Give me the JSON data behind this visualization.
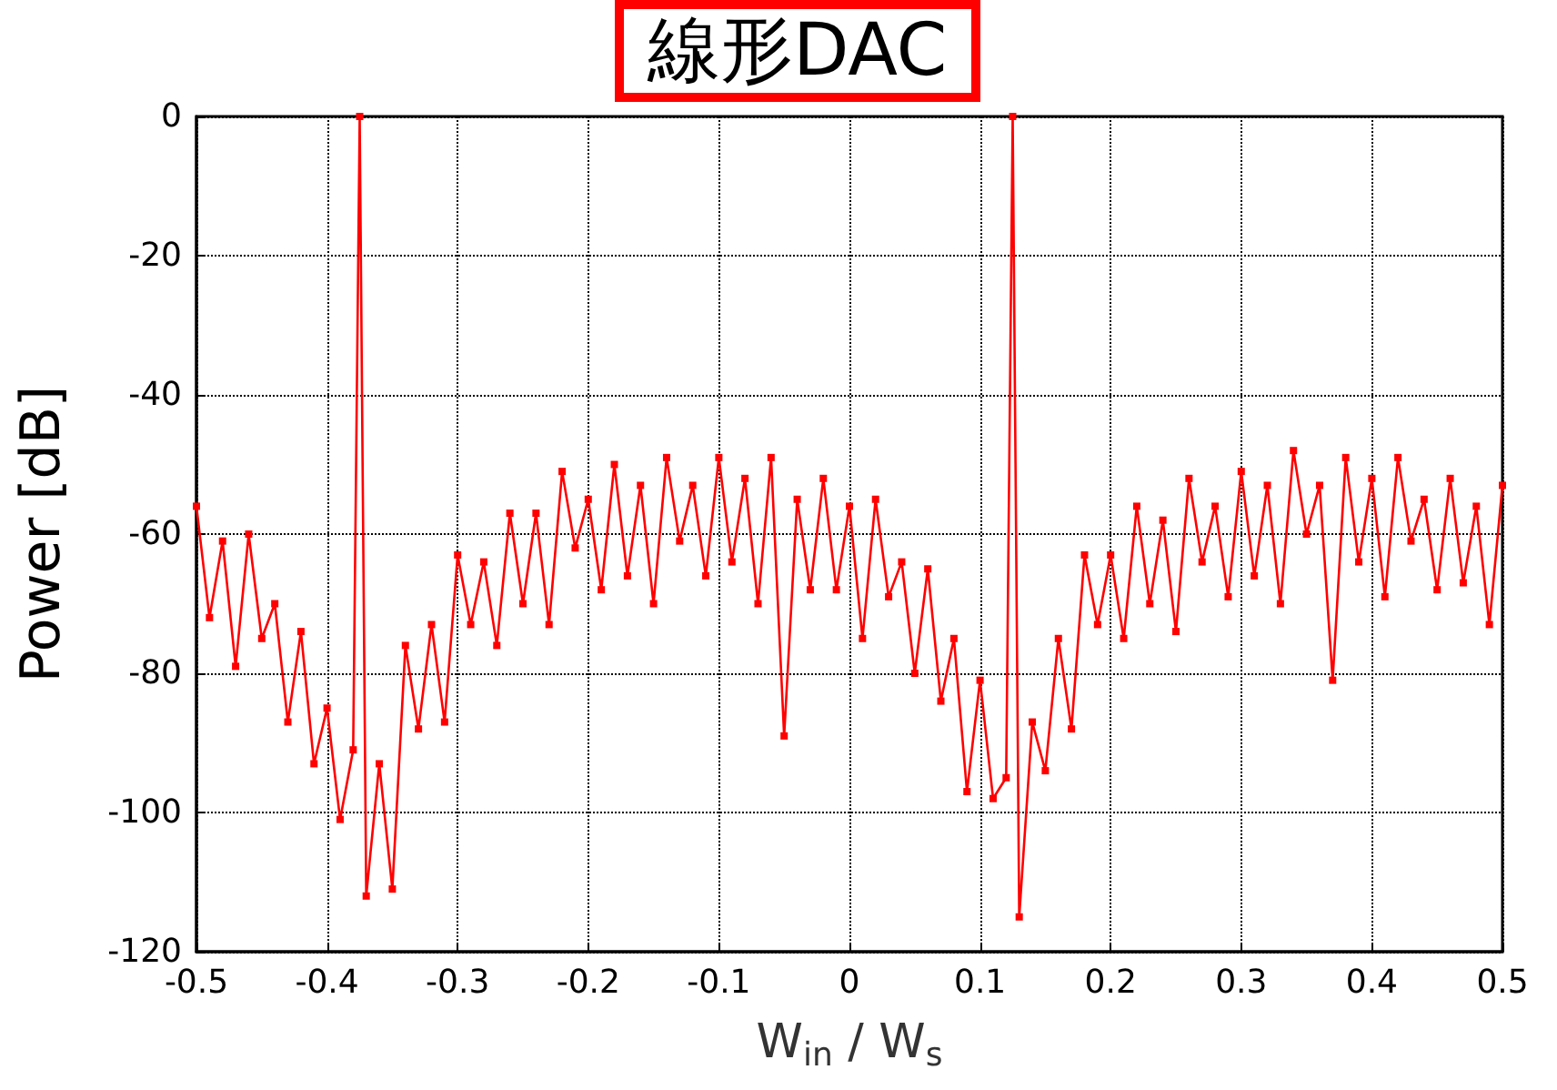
{
  "chart_data": {
    "type": "line",
    "title": "線形DAC",
    "xlabel": "W$_{in}$ / W$_{s}$",
    "ylabel": "Power [dB]",
    "x": [
      -0.5,
      -0.49,
      -0.48,
      -0.47,
      -0.46,
      -0.45,
      -0.44,
      -0.43,
      -0.42,
      -0.41,
      -0.4,
      -0.39,
      -0.38,
      -0.375,
      -0.37,
      -0.36,
      -0.35,
      -0.34,
      -0.33,
      -0.32,
      -0.31,
      -0.3,
      -0.29,
      -0.28,
      -0.27,
      -0.26,
      -0.25,
      -0.24,
      -0.23,
      -0.22,
      -0.21,
      -0.2,
      -0.19,
      -0.18,
      -0.17,
      -0.16,
      -0.15,
      -0.14,
      -0.13,
      -0.12,
      -0.11,
      -0.1,
      -0.09,
      -0.08,
      -0.07,
      -0.06,
      -0.05,
      -0.04,
      -0.03,
      -0.02,
      -0.01,
      0,
      0.01,
      0.02,
      0.03,
      0.04,
      0.05,
      0.06,
      0.07,
      0.08,
      0.09,
      0.1,
      0.11,
      0.12,
      0.125,
      0.13,
      0.14,
      0.15,
      0.16,
      0.17,
      0.18,
      0.19,
      0.2,
      0.21,
      0.22,
      0.23,
      0.24,
      0.25,
      0.26,
      0.27,
      0.28,
      0.29,
      0.3,
      0.31,
      0.32,
      0.33,
      0.34,
      0.35,
      0.36,
      0.37,
      0.38,
      0.39,
      0.4,
      0.41,
      0.42,
      0.43,
      0.44,
      0.45,
      0.46,
      0.47,
      0.48,
      0.49,
      0.5
    ],
    "series": [
      {
        "color": "#ff0000",
        "values": [
          -56,
          -72,
          -61,
          -79,
          -60,
          -75,
          -70,
          -87,
          -74,
          -93,
          -85,
          -101,
          -91,
          0,
          -112,
          -93,
          -111,
          -76,
          -88,
          -73,
          -87,
          -63,
          -73,
          -64,
          -76,
          -57,
          -70,
          -57,
          -73,
          -51,
          -62,
          -55,
          -68,
          -50,
          -66,
          -53,
          -70,
          -49,
          -61,
          -53,
          -66,
          -49,
          -64,
          -52,
          -70,
          -49,
          -89,
          -55,
          -68,
          -52,
          -68,
          -56,
          -75,
          -55,
          -69,
          -64,
          -80,
          -65,
          -84,
          -75,
          -97,
          -81,
          -98,
          -95,
          0,
          -115,
          -87,
          -94,
          -75,
          -88,
          -63,
          -73,
          -63,
          -75,
          -56,
          -70,
          -58,
          -74,
          -52,
          -64,
          -56,
          -69,
          -51,
          -66,
          -53,
          -70,
          -48,
          -60,
          -53,
          -81,
          -49,
          -64,
          -52,
          -69,
          -49,
          -61,
          -55,
          -68,
          -52,
          -67,
          -56,
          -73,
          -53
        ]
      }
    ],
    "xlim": [
      -0.5,
      0.5
    ],
    "xticks": [
      -0.5,
      -0.4,
      -0.3,
      -0.2,
      -0.1,
      0,
      0.1,
      0.2,
      0.3,
      0.4,
      0.5
    ],
    "ylim": [
      -120,
      0
    ],
    "yticks": [
      -120,
      -100,
      -80,
      -60,
      -40,
      -20,
      0
    ],
    "grid": true,
    "marker": "square",
    "line_style": "solid"
  }
}
